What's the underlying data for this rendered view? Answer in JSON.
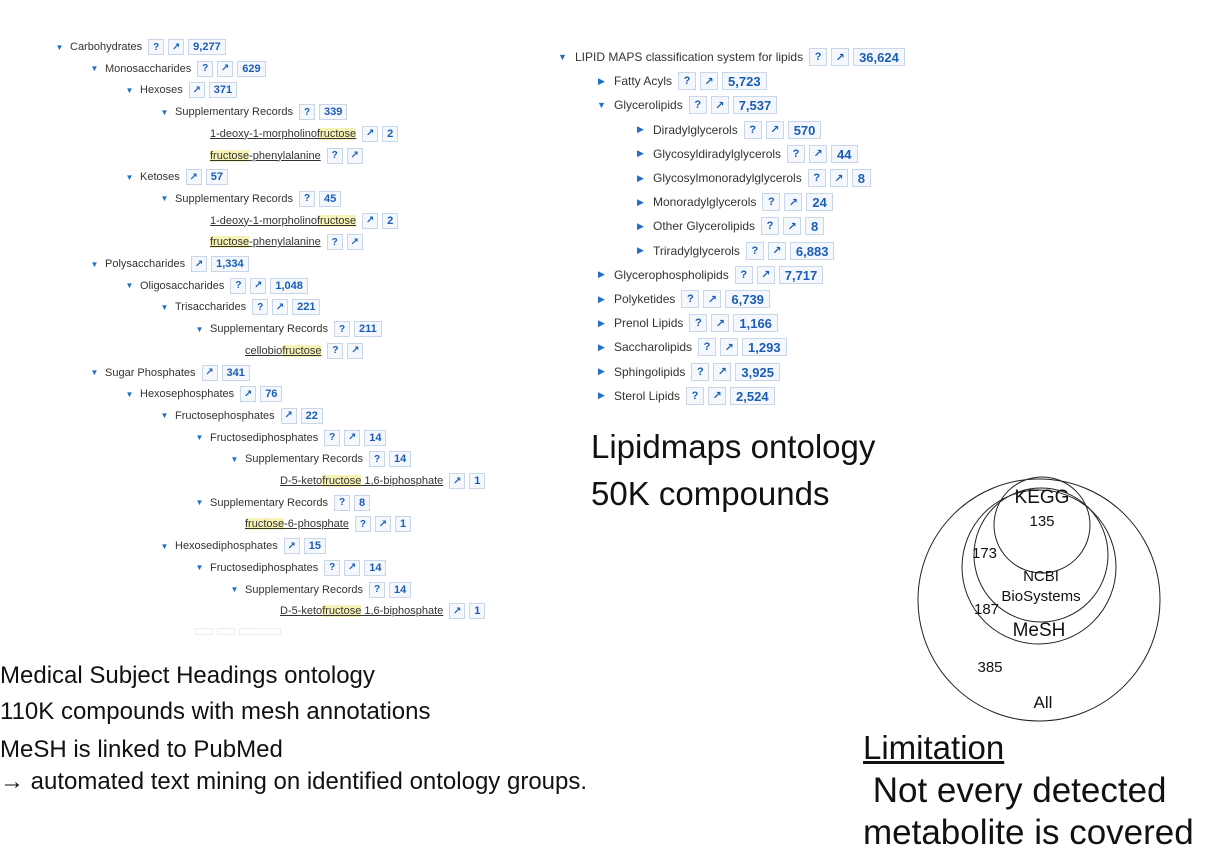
{
  "mesh_tree": [
    {
      "depth": 0,
      "caret": "down",
      "label": "Carbohydrates",
      "q": true,
      "arrow": true,
      "count": "9,277"
    },
    {
      "depth": 1,
      "caret": "down",
      "label": "Monosaccharides",
      "q": true,
      "arrow": true,
      "count": "629"
    },
    {
      "depth": 2,
      "caret": "down",
      "label": "Hexoses",
      "q": false,
      "arrow": true,
      "count": "371"
    },
    {
      "depth": 3,
      "caret": "down",
      "label": "Supplementary Records",
      "q": true,
      "arrow": false,
      "count": "339"
    },
    {
      "depth": 4,
      "caret": "none",
      "link": true,
      "parts": [
        "1-deoxy-1-morpholino",
        "fructose",
        ""
      ],
      "q": false,
      "arrow": true,
      "count": "2"
    },
    {
      "depth": 4,
      "caret": "none",
      "link": true,
      "parts": [
        "",
        "fructose",
        "-phenylalanine"
      ],
      "q": true,
      "arrow": true,
      "count": ""
    },
    {
      "depth": 2,
      "caret": "down",
      "label": "Ketoses",
      "q": false,
      "arrow": true,
      "count": "57"
    },
    {
      "depth": 3,
      "caret": "down",
      "label": "Supplementary Records",
      "q": true,
      "arrow": false,
      "count": "45"
    },
    {
      "depth": 4,
      "caret": "none",
      "link": true,
      "parts": [
        "1-deoxy-1-morpholino",
        "fructose",
        ""
      ],
      "q": false,
      "arrow": true,
      "count": "2"
    },
    {
      "depth": 4,
      "caret": "none",
      "link": true,
      "parts": [
        "",
        "fructose",
        "-phenylalanine"
      ],
      "q": true,
      "arrow": true,
      "count": ""
    },
    {
      "depth": 1,
      "caret": "down",
      "label": "Polysaccharides",
      "q": false,
      "arrow": true,
      "count": "1,334"
    },
    {
      "depth": 2,
      "caret": "down",
      "label": "Oligosaccharides",
      "q": true,
      "arrow": true,
      "count": "1,048"
    },
    {
      "depth": 3,
      "caret": "down",
      "label": "Trisaccharides",
      "q": true,
      "arrow": true,
      "count": "221"
    },
    {
      "depth": 4,
      "caret": "down",
      "label": "Supplementary Records",
      "q": true,
      "arrow": false,
      "count": "211"
    },
    {
      "depth": 5,
      "caret": "none",
      "link": true,
      "parts": [
        "cellobio",
        "fructose",
        ""
      ],
      "q": true,
      "arrow": true,
      "count": ""
    },
    {
      "depth": 1,
      "caret": "down",
      "label": "Sugar Phosphates",
      "q": false,
      "arrow": true,
      "count": "341"
    },
    {
      "depth": 2,
      "caret": "down",
      "label": "Hexosephosphates",
      "q": false,
      "arrow": true,
      "count": "76"
    },
    {
      "depth": 3,
      "caret": "down",
      "label": "Fructosephosphates",
      "q": false,
      "arrow": true,
      "count": "22"
    },
    {
      "depth": 4,
      "caret": "down",
      "label": "Fructosediphosphates",
      "q": true,
      "arrow": true,
      "count": "14"
    },
    {
      "depth": 5,
      "caret": "down",
      "label": "Supplementary Records",
      "q": true,
      "arrow": false,
      "count": "14"
    },
    {
      "depth": 6,
      "caret": "none",
      "link": true,
      "parts": [
        "D-5-keto",
        "fructose",
        " 1,6-biphosphate"
      ],
      "q": false,
      "arrow": true,
      "count": "1"
    },
    {
      "depth": 4,
      "caret": "down",
      "label": "Supplementary Records",
      "q": true,
      "arrow": false,
      "count": "8"
    },
    {
      "depth": 5,
      "caret": "none",
      "link": true,
      "parts": [
        "",
        "fructose",
        "-6-phosphate"
      ],
      "q": true,
      "arrow": true,
      "count": "1"
    },
    {
      "depth": 3,
      "caret": "down",
      "label": "Hexosediphosphates",
      "q": false,
      "arrow": true,
      "count": "15"
    },
    {
      "depth": 4,
      "caret": "down",
      "label": "Fructosediphosphates",
      "q": true,
      "arrow": true,
      "count": "14"
    },
    {
      "depth": 5,
      "caret": "down",
      "label": "Supplementary Records",
      "q": true,
      "arrow": false,
      "count": "14"
    },
    {
      "depth": 6,
      "caret": "none",
      "link": true,
      "parts": [
        "D-5-keto",
        "fructose",
        " 1,6-biphosphate"
      ],
      "q": false,
      "arrow": true,
      "count": "1"
    }
  ],
  "lipid_tree": [
    {
      "depth": 0,
      "caret": "down",
      "label": "LIPID MAPS classification system for lipids",
      "q": true,
      "arrow": true,
      "count": "36,624"
    },
    {
      "depth": 1,
      "caret": "right",
      "label": "Fatty Acyls",
      "q": true,
      "arrow": true,
      "count": "5,723"
    },
    {
      "depth": 1,
      "caret": "down",
      "label": "Glycerolipids",
      "q": true,
      "arrow": true,
      "count": "7,537"
    },
    {
      "depth": 2,
      "caret": "right",
      "label": "Diradylglycerols",
      "q": true,
      "arrow": true,
      "count": "570"
    },
    {
      "depth": 2,
      "caret": "right",
      "label": "Glycosyldiradylglycerols",
      "q": true,
      "arrow": true,
      "count": "44"
    },
    {
      "depth": 2,
      "caret": "right",
      "label": "Glycosylmonoradylglycerols",
      "q": true,
      "arrow": true,
      "count": "8"
    },
    {
      "depth": 2,
      "caret": "right",
      "label": "Monoradylglycerols",
      "q": true,
      "arrow": true,
      "count": "24"
    },
    {
      "depth": 2,
      "caret": "right",
      "label": "Other Glycerolipids",
      "q": true,
      "arrow": true,
      "count": "8"
    },
    {
      "depth": 2,
      "caret": "right",
      "label": "Triradylglycerols",
      "q": true,
      "arrow": true,
      "count": "6,883"
    },
    {
      "depth": 1,
      "caret": "right",
      "label": "Glycerophospholipids",
      "q": true,
      "arrow": true,
      "count": "7,717"
    },
    {
      "depth": 1,
      "caret": "right",
      "label": "Polyketides",
      "q": true,
      "arrow": true,
      "count": "6,739"
    },
    {
      "depth": 1,
      "caret": "right",
      "label": "Prenol Lipids",
      "q": true,
      "arrow": true,
      "count": "1,166"
    },
    {
      "depth": 1,
      "caret": "right",
      "label": "Saccharolipids",
      "q": true,
      "arrow": true,
      "count": "1,293"
    },
    {
      "depth": 1,
      "caret": "right",
      "label": "Sphingolipids",
      "q": true,
      "arrow": true,
      "count": "3,925"
    },
    {
      "depth": 1,
      "caret": "right",
      "label": "Sterol Lipids",
      "q": true,
      "arrow": true,
      "count": "2,524"
    }
  ],
  "lipidmaps_caption": {
    "line1": "Lipidmaps ontology",
    "line2": "50K compounds"
  },
  "mesh_caption": {
    "line1": "Medical Subject Headings ontology",
    "line2": "110K compounds with mesh annotations",
    "line3": "MeSH is linked to PubMed",
    "line4": "→ automated text mining on identified ontology groups."
  },
  "venn": {
    "kegg_label": "KEGG",
    "kegg_count": "135",
    "ncbi_count": "173",
    "ncbi_label_1": "NCBI",
    "ncbi_label_2": "BioSystems",
    "mesh_count": "187",
    "mesh_label": "MeSH",
    "all_count": "385",
    "all_label": "All"
  },
  "limitation": {
    "title": "Limitation",
    "line1": " Not every detected",
    "line2": "metabolite is covered"
  },
  "colors": {
    "accent": "#1a5db5",
    "highlight": "#f7f3b6"
  }
}
